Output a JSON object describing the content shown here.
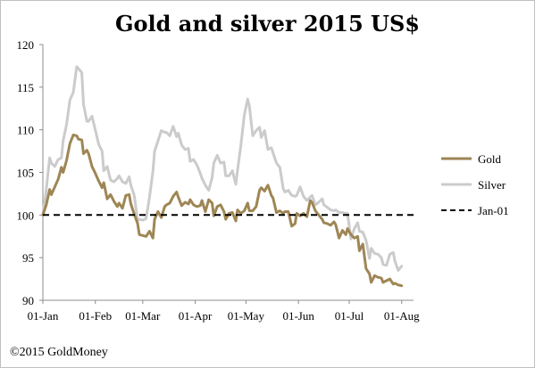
{
  "chart_data": {
    "type": "line",
    "title": "Gold and silver 2015 US$",
    "ylim": [
      90,
      120
    ],
    "yticks": [
      90,
      95,
      100,
      105,
      110,
      115,
      120
    ],
    "xticks": [
      "01-Jan",
      "01-Feb",
      "01-Mar",
      "01-Apr",
      "01-May",
      "01-Jun",
      "01-Jul",
      "01-Aug"
    ],
    "xtick_days": [
      0,
      31,
      59,
      90,
      120,
      151,
      181,
      212
    ],
    "xlim_days": [
      0,
      219
    ],
    "series": [
      {
        "name": "Gold",
        "color": "#9e8654",
        "style": "solid",
        "points": [
          [
            0,
            100.0
          ],
          [
            2,
            101.2
          ],
          [
            4,
            103.0
          ],
          [
            5,
            102.4
          ],
          [
            7,
            103.3
          ],
          [
            9,
            104.2
          ],
          [
            11,
            105.6
          ],
          [
            12,
            105.0
          ],
          [
            14,
            106.4
          ],
          [
            16,
            108.4
          ],
          [
            18,
            109.4
          ],
          [
            20,
            109.3
          ],
          [
            21,
            108.9
          ],
          [
            23,
            108.8
          ],
          [
            24,
            107.2
          ],
          [
            26,
            107.6
          ],
          [
            27,
            107.2
          ],
          [
            29,
            105.7
          ],
          [
            31,
            104.9
          ],
          [
            33,
            104.0
          ],
          [
            35,
            103.2
          ],
          [
            36,
            103.8
          ],
          [
            38,
            101.9
          ],
          [
            40,
            102.4
          ],
          [
            42,
            101.6
          ],
          [
            44,
            101.0
          ],
          [
            45,
            101.4
          ],
          [
            47,
            100.8
          ],
          [
            49,
            102.3
          ],
          [
            51,
            102.4
          ],
          [
            52,
            101.3
          ],
          [
            54,
            100.1
          ],
          [
            56,
            99.0
          ],
          [
            57,
            97.7
          ],
          [
            59,
            97.6
          ],
          [
            61,
            97.5
          ],
          [
            63,
            98.1
          ],
          [
            65,
            97.3
          ],
          [
            66,
            99.5
          ],
          [
            68,
            100.4
          ],
          [
            70,
            99.7
          ],
          [
            72,
            101.0
          ],
          [
            73,
            101.2
          ],
          [
            75,
            101.4
          ],
          [
            77,
            102.2
          ],
          [
            79,
            102.7
          ],
          [
            80,
            102.1
          ],
          [
            82,
            101.1
          ],
          [
            84,
            101.5
          ],
          [
            86,
            101.3
          ],
          [
            87,
            101.8
          ],
          [
            89,
            101.2
          ],
          [
            91,
            101.0
          ],
          [
            93,
            101.1
          ],
          [
            94,
            101.7
          ],
          [
            96,
            100.4
          ],
          [
            98,
            101.8
          ],
          [
            100,
            101.4
          ],
          [
            101,
            99.9
          ],
          [
            103,
            101.0
          ],
          [
            105,
            101.2
          ],
          [
            107,
            100.4
          ],
          [
            108,
            99.5
          ],
          [
            110,
            100.2
          ],
          [
            112,
            100.3
          ],
          [
            114,
            99.3
          ],
          [
            115,
            100.6
          ],
          [
            117,
            100.2
          ],
          [
            119,
            100.5
          ],
          [
            121,
            101.4
          ],
          [
            122,
            100.5
          ],
          [
            124,
            100.5
          ],
          [
            126,
            101.0
          ],
          [
            128,
            102.9
          ],
          [
            129,
            103.2
          ],
          [
            131,
            102.8
          ],
          [
            133,
            103.5
          ],
          [
            135,
            102.3
          ],
          [
            136,
            102.0
          ],
          [
            138,
            100.3
          ],
          [
            140,
            100.5
          ],
          [
            142,
            100.2
          ],
          [
            143,
            100.4
          ],
          [
            145,
            100.4
          ],
          [
            147,
            98.7
          ],
          [
            149,
            99.0
          ],
          [
            150,
            100.2
          ],
          [
            152,
            99.9
          ],
          [
            154,
            100.2
          ],
          [
            156,
            99.8
          ],
          [
            158,
            101.7
          ],
          [
            159,
            101.5
          ],
          [
            161,
            100.5
          ],
          [
            163,
            100.0
          ],
          [
            165,
            99.5
          ],
          [
            166,
            99.1
          ],
          [
            168,
            99.0
          ],
          [
            170,
            98.8
          ],
          [
            172,
            99.2
          ],
          [
            173,
            98.9
          ],
          [
            175,
            97.3
          ],
          [
            177,
            98.2
          ],
          [
            179,
            97.7
          ],
          [
            180,
            98.4
          ],
          [
            182,
            97.7
          ],
          [
            184,
            97.3
          ],
          [
            186,
            97.5
          ],
          [
            187,
            95.8
          ],
          [
            189,
            96.6
          ],
          [
            191,
            93.7
          ],
          [
            193,
            93.1
          ],
          [
            194,
            92.1
          ],
          [
            196,
            92.9
          ],
          [
            198,
            92.7
          ],
          [
            200,
            92.6
          ],
          [
            201,
            92.1
          ],
          [
            203,
            92.3
          ],
          [
            205,
            92.5
          ],
          [
            207,
            91.9
          ],
          [
            208,
            92.0
          ],
          [
            210,
            91.8
          ],
          [
            212,
            91.7
          ]
        ]
      },
      {
        "name": "Silver",
        "color": "#cbcbcb",
        "style": "solid",
        "points": [
          [
            0,
            100.0
          ],
          [
            2,
            103.0
          ],
          [
            4,
            106.7
          ],
          [
            5,
            106.1
          ],
          [
            7,
            105.7
          ],
          [
            9,
            106.5
          ],
          [
            11,
            106.7
          ],
          [
            12,
            108.7
          ],
          [
            14,
            110.6
          ],
          [
            16,
            113.5
          ],
          [
            18,
            114.4
          ],
          [
            20,
            117.4
          ],
          [
            21,
            117.2
          ],
          [
            23,
            116.7
          ],
          [
            24,
            113.0
          ],
          [
            26,
            111.0
          ],
          [
            27,
            111.0
          ],
          [
            29,
            111.6
          ],
          [
            31,
            110.0
          ],
          [
            33,
            108.3
          ],
          [
            35,
            107.5
          ],
          [
            36,
            105.2
          ],
          [
            38,
            105.7
          ],
          [
            40,
            104.1
          ],
          [
            42,
            103.9
          ],
          [
            44,
            104.3
          ],
          [
            45,
            104.6
          ],
          [
            47,
            103.9
          ],
          [
            49,
            103.7
          ],
          [
            51,
            104.5
          ],
          [
            52,
            103.5
          ],
          [
            54,
            102.3
          ],
          [
            56,
            99.3
          ],
          [
            57,
            99.5
          ],
          [
            59,
            99.4
          ],
          [
            61,
            99.6
          ],
          [
            63,
            102.1
          ],
          [
            65,
            105.1
          ],
          [
            66,
            107.5
          ],
          [
            68,
            108.7
          ],
          [
            70,
            109.9
          ],
          [
            72,
            109.7
          ],
          [
            73,
            109.7
          ],
          [
            75,
            109.3
          ],
          [
            77,
            110.4
          ],
          [
            79,
            109.2
          ],
          [
            80,
            109.6
          ],
          [
            82,
            108.2
          ],
          [
            84,
            107.7
          ],
          [
            86,
            107.8
          ],
          [
            87,
            106.3
          ],
          [
            89,
            106.5
          ],
          [
            91,
            105.9
          ],
          [
            93,
            104.9
          ],
          [
            94,
            104.3
          ],
          [
            96,
            103.5
          ],
          [
            98,
            102.9
          ],
          [
            100,
            104.4
          ],
          [
            101,
            106.1
          ],
          [
            103,
            107.0
          ],
          [
            105,
            106.1
          ],
          [
            107,
            106.2
          ],
          [
            108,
            104.6
          ],
          [
            110,
            104.6
          ],
          [
            112,
            105.2
          ],
          [
            114,
            103.6
          ],
          [
            115,
            105.2
          ],
          [
            117,
            108.2
          ],
          [
            119,
            111.7
          ],
          [
            121,
            113.6
          ],
          [
            122,
            112.8
          ],
          [
            124,
            109.3
          ],
          [
            126,
            109.9
          ],
          [
            128,
            110.3
          ],
          [
            129,
            109.1
          ],
          [
            131,
            109.9
          ],
          [
            133,
            107.7
          ],
          [
            135,
            107.9
          ],
          [
            136,
            107.3
          ],
          [
            138,
            106.1
          ],
          [
            140,
            105.6
          ],
          [
            142,
            103.1
          ],
          [
            143,
            102.7
          ],
          [
            145,
            102.9
          ],
          [
            147,
            102.3
          ],
          [
            149,
            102.2
          ],
          [
            150,
            102.3
          ],
          [
            152,
            103.3
          ],
          [
            154,
            102.2
          ],
          [
            156,
            101.7
          ],
          [
            158,
            102.1
          ],
          [
            159,
            102.3
          ],
          [
            161,
            101.2
          ],
          [
            163,
            101.5
          ],
          [
            165,
            101.9
          ],
          [
            166,
            101.2
          ],
          [
            168,
            100.9
          ],
          [
            170,
            100.6
          ],
          [
            172,
            100.5
          ],
          [
            173,
            100.6
          ],
          [
            175,
            100.3
          ],
          [
            177,
            100.3
          ],
          [
            179,
            100.2
          ],
          [
            180,
            100.2
          ],
          [
            182,
            97.2
          ],
          [
            184,
            98.4
          ],
          [
            186,
            99.1
          ],
          [
            187,
            98.1
          ],
          [
            189,
            98.0
          ],
          [
            191,
            97.0
          ],
          [
            193,
            94.9
          ],
          [
            194,
            96.1
          ],
          [
            196,
            95.5
          ],
          [
            198,
            95.4
          ],
          [
            200,
            95.0
          ],
          [
            201,
            94.2
          ],
          [
            203,
            94.1
          ],
          [
            205,
            95.4
          ],
          [
            207,
            95.6
          ],
          [
            208,
            94.6
          ],
          [
            210,
            93.5
          ],
          [
            212,
            94.0
          ]
        ]
      },
      {
        "name": "Jan-01",
        "color": "#000000",
        "style": "dashed",
        "points": [
          [
            0,
            100
          ],
          [
            219,
            100
          ]
        ]
      }
    ],
    "legend_position": "right",
    "grid": false
  },
  "footer": {
    "copyright": "©2015 GoldMoney"
  }
}
